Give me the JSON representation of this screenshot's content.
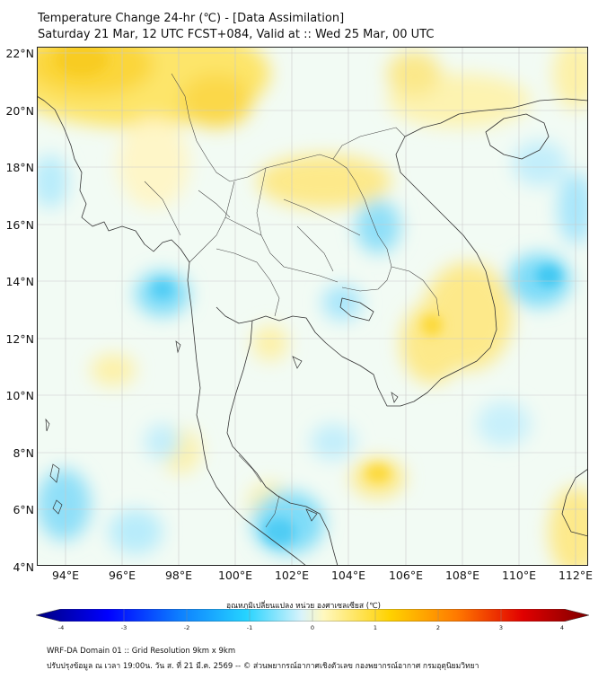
{
  "header": {
    "title": "Temperature Change 24-hr (℃) - [Data Assimilation]",
    "subtitle": "Saturday 21 Mar, 12 UTC FCST+084, Valid at :: Wed 25 Mar, 00 UTC"
  },
  "map": {
    "lat_labels": [
      "22°N",
      "20°N",
      "18°N",
      "16°N",
      "14°N",
      "12°N",
      "10°N",
      "8°N",
      "6°N",
      "4°N"
    ],
    "lon_labels": [
      "94°E",
      "96°E",
      "98°E",
      "100°E",
      "102°E",
      "104°E",
      "106°E",
      "108°E",
      "110°E",
      "112°E"
    ],
    "extent": {
      "lon": [
        93,
        112.4
      ],
      "lat": [
        4,
        22.2
      ]
    }
  },
  "colorbar": {
    "title": "อุณหภูมิเปลี่ยนแปลง หน่วย องศาเซลเซียส (℃)",
    "ticks": [
      "-4",
      "-3",
      "-2",
      "-1",
      "0",
      "1",
      "2",
      "3",
      "4"
    ],
    "range": [
      -4,
      4
    ],
    "colors": [
      "#00007e",
      "#0000ff",
      "#0d7fff",
      "#25d3ff",
      "#d8f3fb",
      "#fff8bf",
      "#ffd200",
      "#ff7a00",
      "#e10000",
      "#7e0000"
    ]
  },
  "footer": {
    "line1": "WRF-DA Domain 01 :: Grid Resolution 9km x 9km",
    "line2": "ปรับปรุงข้อมูล ณ เวลา 19:00น. วัน ส. ที่ 21 มี.ค. 2569 -- © ส่วนพยากรณ์อากาศเชิงตัวเลข กองพยากรณ์อากาศ กรมอุตุนิยมวิทยา"
  }
}
